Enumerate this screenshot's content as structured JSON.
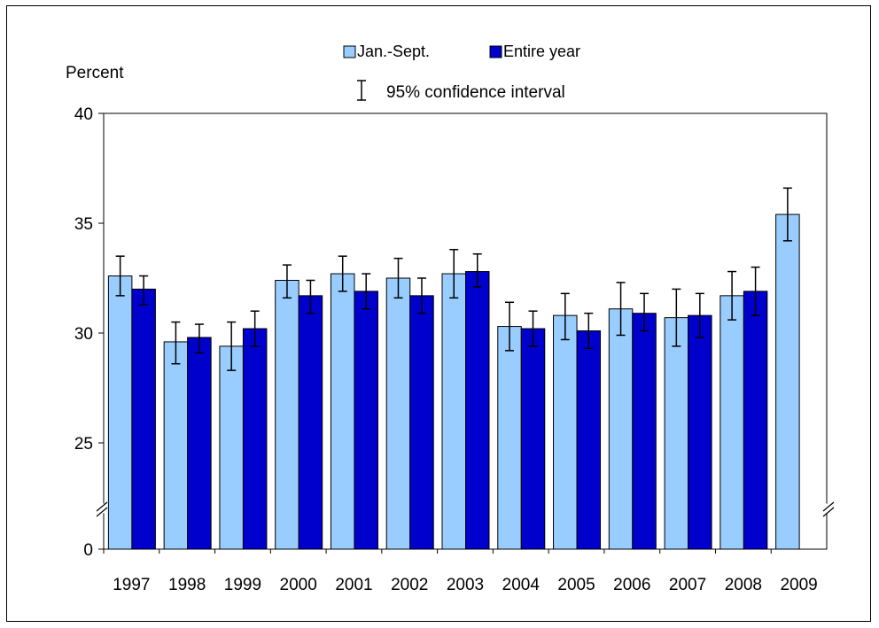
{
  "chart_data": {
    "type": "bar",
    "ylabel": "Percent",
    "categories": [
      "1997",
      "1998",
      "1999",
      "2000",
      "2001",
      "2002",
      "2003",
      "2004",
      "2005",
      "2006",
      "2007",
      "2008",
      "2009"
    ],
    "series": [
      {
        "name": "Jan.-Sept.",
        "color": "#99ccff",
        "values": [
          32.6,
          29.6,
          29.4,
          32.4,
          32.7,
          32.5,
          32.7,
          30.3,
          30.8,
          31.1,
          30.7,
          31.7,
          35.4
        ],
        "ci_low": [
          31.7,
          28.6,
          28.3,
          31.6,
          31.9,
          31.6,
          31.6,
          29.2,
          29.7,
          29.9,
          29.4,
          30.6,
          34.2
        ],
        "ci_high": [
          33.5,
          30.5,
          30.5,
          33.1,
          33.5,
          33.4,
          33.8,
          31.4,
          31.8,
          32.3,
          32.0,
          32.8,
          36.6
        ]
      },
      {
        "name": "Entire year",
        "color": "#0000cc",
        "values": [
          32.0,
          29.8,
          30.2,
          31.7,
          31.9,
          31.7,
          32.8,
          30.2,
          30.1,
          30.9,
          30.8,
          31.9,
          null
        ],
        "ci_low": [
          31.3,
          29.1,
          29.4,
          30.9,
          31.1,
          30.9,
          32.1,
          29.4,
          29.3,
          30.1,
          29.8,
          30.8,
          null
        ],
        "ci_high": [
          32.6,
          30.4,
          31.0,
          32.4,
          32.7,
          32.5,
          33.6,
          31.0,
          30.9,
          31.8,
          31.8,
          33.0,
          null
        ]
      }
    ],
    "yticks": [
      0,
      25,
      30,
      35,
      40
    ],
    "ylim": [
      20,
      40
    ],
    "axis_break": true,
    "legend": {
      "placement": "top-center",
      "ci_label": "95% confidence interval"
    },
    "grid": false
  }
}
